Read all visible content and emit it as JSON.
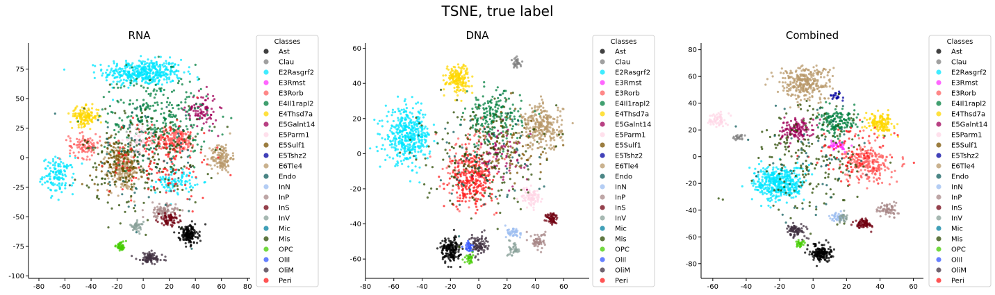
{
  "figure": {
    "title": "TSNE, true label"
  },
  "legend": {
    "title": "Classes",
    "classes": [
      {
        "name": "Ast",
        "color": "#000000"
      },
      {
        "name": "Clau",
        "color": "#808080"
      },
      {
        "name": "E2Rasgrf2",
        "color": "#00e5ff"
      },
      {
        "name": "E3Rmst",
        "color": "#ff33ff"
      },
      {
        "name": "E3Rorb",
        "color": "#ff6060"
      },
      {
        "name": "E4Il1rapl2",
        "color": "#007f3f"
      },
      {
        "name": "E4Thsd7a",
        "color": "#ffd700"
      },
      {
        "name": "E5Galnt14",
        "color": "#a0005a"
      },
      {
        "name": "E5Parm1",
        "color": "#ffd6e6"
      },
      {
        "name": "E5Sulf1",
        "color": "#7a5200"
      },
      {
        "name": "E5Tshz2",
        "color": "#0000a0"
      },
      {
        "name": "E6Tle4",
        "color": "#b8986a"
      },
      {
        "name": "Endo",
        "color": "#0e5c5c"
      },
      {
        "name": "InN",
        "color": "#9bbcf0"
      },
      {
        "name": "InP",
        "color": "#a88888"
      },
      {
        "name": "InS",
        "color": "#700010"
      },
      {
        "name": "InV",
        "color": "#88a098"
      },
      {
        "name": "Mic",
        "color": "#007f9f"
      },
      {
        "name": "Mis",
        "color": "#2a4a00"
      },
      {
        "name": "OPC",
        "color": "#44cc00"
      },
      {
        "name": "Olil",
        "color": "#3355ff"
      },
      {
        "name": "OliM",
        "color": "#403040"
      },
      {
        "name": "Peri",
        "color": "#ff1a1a"
      }
    ]
  },
  "chart_data": [
    {
      "type": "scatter",
      "title": "RNA",
      "xlabel": "",
      "ylabel": "",
      "xlim": [
        -88,
        82
      ],
      "ylim": [
        -102,
        97
      ],
      "xticks": [
        -80,
        -60,
        -40,
        -20,
        0,
        20,
        40,
        60,
        80
      ],
      "yticks": [
        -100,
        -75,
        -50,
        -25,
        0,
        25,
        50,
        75
      ],
      "legend_placement": "right",
      "clusters": [
        {
          "class": "E2Rasgrf2",
          "center": [
            0,
            72
          ],
          "spread": [
            30,
            11
          ],
          "n": 420
        },
        {
          "class": "E2Rasgrf2",
          "center": [
            -65,
            -15
          ],
          "spread": [
            12,
            15
          ],
          "n": 130
        },
        {
          "class": "E2Rasgrf2",
          "center": [
            25,
            -20
          ],
          "spread": [
            15,
            10
          ],
          "n": 90
        },
        {
          "class": "E6Tle4",
          "center": [
            -15,
            -10
          ],
          "spread": [
            12,
            18
          ],
          "n": 210
        },
        {
          "class": "E6Tle4",
          "center": [
            60,
            0
          ],
          "spread": [
            8,
            12
          ],
          "n": 130
        },
        {
          "class": "E3Rorb",
          "center": [
            25,
            15
          ],
          "spread": [
            16,
            10
          ],
          "n": 200
        },
        {
          "class": "E3Rorb",
          "center": [
            -45,
            10
          ],
          "spread": [
            12,
            10
          ],
          "n": 100
        },
        {
          "class": "E4Thsd7a",
          "center": [
            -45,
            35
          ],
          "spread": [
            11,
            8
          ],
          "n": 140
        },
        {
          "class": "E5Galnt14",
          "center": [
            45,
            40
          ],
          "spread": [
            12,
            15
          ],
          "n": 90
        },
        {
          "class": "E4Il1rapl2",
          "center": [
            10,
            35
          ],
          "spread": [
            40,
            35
          ],
          "n": 300
        },
        {
          "class": "Mis",
          "center": [
            0,
            0
          ],
          "spread": [
            45,
            45
          ],
          "n": 240
        },
        {
          "class": "E5Sulf1",
          "center": [
            -20,
            -5
          ],
          "spread": [
            20,
            20
          ],
          "n": 110
        },
        {
          "class": "Peri",
          "center": [
            15,
            0
          ],
          "spread": [
            40,
            35
          ],
          "n": 140
        },
        {
          "class": "Ast",
          "center": [
            35,
            -65
          ],
          "spread": [
            7,
            8
          ],
          "n": 160
        },
        {
          "class": "InP",
          "center": [
            15,
            -45
          ],
          "spread": [
            10,
            6
          ],
          "n": 90
        },
        {
          "class": "InS",
          "center": [
            20,
            -52
          ],
          "spread": [
            8,
            5
          ],
          "n": 70
        },
        {
          "class": "OliM",
          "center": [
            5,
            -85
          ],
          "spread": [
            10,
            5
          ],
          "n": 90
        },
        {
          "class": "OPC",
          "center": [
            -17,
            -75
          ],
          "spread": [
            4,
            4
          ],
          "n": 45
        },
        {
          "class": "InV",
          "center": [
            -5,
            -58
          ],
          "spread": [
            5,
            4
          ],
          "n": 40
        },
        {
          "class": "E5Parm1",
          "center": [
            -5,
            15
          ],
          "spread": [
            10,
            10
          ],
          "n": 50
        },
        {
          "class": "Endo",
          "center": [
            0,
            0
          ],
          "spread": [
            45,
            45
          ],
          "n": 80
        }
      ]
    },
    {
      "type": "scatter",
      "title": "DNA",
      "xlabel": "",
      "ylabel": "",
      "xlim": [
        -80,
        78
      ],
      "ylim": [
        -71,
        63
      ],
      "xticks": [
        -80,
        -60,
        -40,
        -20,
        0,
        20,
        40,
        60
      ],
      "yticks": [
        -60,
        -40,
        -20,
        0,
        20,
        40,
        60
      ],
      "legend_placement": "right",
      "clusters": [
        {
          "class": "E2Rasgrf2",
          "center": [
            -50,
            10
          ],
          "spread": [
            16,
            15
          ],
          "n": 420
        },
        {
          "class": "E4Thsd7a",
          "center": [
            -15,
            43
          ],
          "spread": [
            8,
            8
          ],
          "n": 170
        },
        {
          "class": "E6Tle4",
          "center": [
            45,
            15
          ],
          "spread": [
            14,
            13
          ],
          "n": 280
        },
        {
          "class": "E4Il1rapl2",
          "center": [
            10,
            20
          ],
          "spread": [
            20,
            15
          ],
          "n": 200
        },
        {
          "class": "Peri",
          "center": [
            -5,
            -15
          ],
          "spread": [
            15,
            15
          ],
          "n": 260
        },
        {
          "class": "E3Rorb",
          "center": [
            -5,
            -5
          ],
          "spread": [
            20,
            20
          ],
          "n": 120
        },
        {
          "class": "E5Galnt14",
          "center": [
            15,
            0
          ],
          "spread": [
            20,
            15
          ],
          "n": 80
        },
        {
          "class": "Ast",
          "center": [
            -20,
            -55
          ],
          "spread": [
            7,
            7
          ],
          "n": 170
        },
        {
          "class": "OliM",
          "center": [
            0,
            -52
          ],
          "spread": [
            6,
            6
          ],
          "n": 90
        },
        {
          "class": "Olil",
          "center": [
            -7,
            -53
          ],
          "spread": [
            3,
            3
          ],
          "n": 30
        },
        {
          "class": "OPC",
          "center": [
            -7,
            -60
          ],
          "spread": [
            3,
            3
          ],
          "n": 30
        },
        {
          "class": "InN",
          "center": [
            25,
            -45
          ],
          "spread": [
            5,
            4
          ],
          "n": 40
        },
        {
          "class": "InV",
          "center": [
            25,
            -54
          ],
          "spread": [
            4,
            4
          ],
          "n": 35
        },
        {
          "class": "InP",
          "center": [
            42,
            -50
          ],
          "spread": [
            5,
            5
          ],
          "n": 60
        },
        {
          "class": "InS",
          "center": [
            52,
            -37
          ],
          "spread": [
            4,
            4
          ],
          "n": 60
        },
        {
          "class": "E5Parm1",
          "center": [
            37,
            -25
          ],
          "spread": [
            7,
            6
          ],
          "n": 80
        },
        {
          "class": "Clau",
          "center": [
            27,
            52
          ],
          "spread": [
            3,
            3
          ],
          "n": 35
        },
        {
          "class": "Mis",
          "center": [
            0,
            0
          ],
          "spread": [
            40,
            30
          ],
          "n": 200
        },
        {
          "class": "E5Sulf1",
          "center": [
            20,
            5
          ],
          "spread": [
            30,
            20
          ],
          "n": 90
        },
        {
          "class": "Endo",
          "center": [
            0,
            0
          ],
          "spread": [
            40,
            30
          ],
          "n": 60
        }
      ]
    },
    {
      "type": "scatter",
      "title": "Combined",
      "xlabel": "",
      "ylabel": "",
      "xlim": [
        -67,
        66
      ],
      "ylim": [
        -91,
        85
      ],
      "xticks": [
        -60,
        -40,
        -20,
        0,
        20,
        40,
        60
      ],
      "yticks": [
        -80,
        -60,
        -40,
        -20,
        0,
        20,
        40,
        60,
        80
      ],
      "legend_placement": "right",
      "clusters": [
        {
          "class": "E6Tle4",
          "center": [
            -5,
            55
          ],
          "spread": [
            16,
            13
          ],
          "n": 300
        },
        {
          "class": "E2Rasgrf2",
          "center": [
            -20,
            -20
          ],
          "spread": [
            15,
            13
          ],
          "n": 420
        },
        {
          "class": "E3Rorb",
          "center": [
            33,
            -5
          ],
          "spread": [
            13,
            13
          ],
          "n": 250
        },
        {
          "class": "E4Thsd7a",
          "center": [
            40,
            25
          ],
          "spread": [
            8,
            7
          ],
          "n": 140
        },
        {
          "class": "E4Il1rapl2",
          "center": [
            15,
            25
          ],
          "spread": [
            12,
            10
          ],
          "n": 150
        },
        {
          "class": "E5Galnt14",
          "center": [
            -10,
            20
          ],
          "spread": [
            10,
            8
          ],
          "n": 130
        },
        {
          "class": "E3Rmst",
          "center": [
            15,
            8
          ],
          "spread": [
            5,
            4
          ],
          "n": 40
        },
        {
          "class": "E5Parm1",
          "center": [
            -57,
            28
          ],
          "spread": [
            5,
            5
          ],
          "n": 60
        },
        {
          "class": "Clau",
          "center": [
            -45,
            15
          ],
          "spread": [
            3,
            3
          ],
          "n": 25
        },
        {
          "class": "Ast",
          "center": [
            5,
            -72
          ],
          "spread": [
            6,
            6
          ],
          "n": 170
        },
        {
          "class": "InS",
          "center": [
            30,
            -50
          ],
          "spread": [
            5,
            4
          ],
          "n": 70
        },
        {
          "class": "InP",
          "center": [
            45,
            -40
          ],
          "spread": [
            6,
            5
          ],
          "n": 70
        },
        {
          "class": "InN",
          "center": [
            15,
            -45
          ],
          "spread": [
            4,
            3
          ],
          "n": 40
        },
        {
          "class": "InV",
          "center": [
            18,
            -45
          ],
          "spread": [
            4,
            4
          ],
          "n": 30
        },
        {
          "class": "OliM",
          "center": [
            -10,
            -55
          ],
          "spread": [
            6,
            5
          ],
          "n": 80
        },
        {
          "class": "OPC",
          "center": [
            -8,
            -65
          ],
          "spread": [
            3,
            3
          ],
          "n": 25
        },
        {
          "class": "E5Tshz2",
          "center": [
            15,
            45
          ],
          "spread": [
            4,
            4
          ],
          "n": 20
        },
        {
          "class": "Mis",
          "center": [
            0,
            0
          ],
          "spread": [
            35,
            40
          ],
          "n": 200
        },
        {
          "class": "Peri",
          "center": [
            25,
            0
          ],
          "spread": [
            25,
            25
          ],
          "n": 80
        },
        {
          "class": "Endo",
          "center": [
            0,
            0
          ],
          "spread": [
            35,
            40
          ],
          "n": 60
        }
      ]
    }
  ]
}
